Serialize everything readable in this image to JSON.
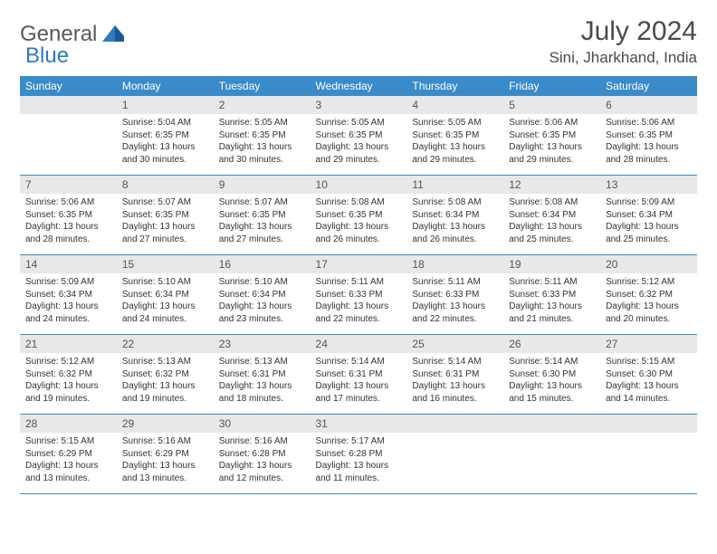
{
  "logo": {
    "text1": "General",
    "text2": "Blue"
  },
  "title": "July 2024",
  "location": "Sini, Jharkhand, India",
  "colors": {
    "header_bg": "#3a8bc9",
    "header_fg": "#ffffff",
    "daynum_bg": "#e8e8e8",
    "border": "#3a8bc9",
    "logo_gray": "#58595b",
    "logo_blue": "#2c7bbf"
  },
  "weekdays": [
    "Sunday",
    "Monday",
    "Tuesday",
    "Wednesday",
    "Thursday",
    "Friday",
    "Saturday"
  ],
  "weeks": [
    [
      {
        "n": "",
        "lines": []
      },
      {
        "n": "1",
        "lines": [
          "Sunrise: 5:04 AM",
          "Sunset: 6:35 PM",
          "Daylight: 13 hours and 30 minutes."
        ]
      },
      {
        "n": "2",
        "lines": [
          "Sunrise: 5:05 AM",
          "Sunset: 6:35 PM",
          "Daylight: 13 hours and 30 minutes."
        ]
      },
      {
        "n": "3",
        "lines": [
          "Sunrise: 5:05 AM",
          "Sunset: 6:35 PM",
          "Daylight: 13 hours and 29 minutes."
        ]
      },
      {
        "n": "4",
        "lines": [
          "Sunrise: 5:05 AM",
          "Sunset: 6:35 PM",
          "Daylight: 13 hours and 29 minutes."
        ]
      },
      {
        "n": "5",
        "lines": [
          "Sunrise: 5:06 AM",
          "Sunset: 6:35 PM",
          "Daylight: 13 hours and 29 minutes."
        ]
      },
      {
        "n": "6",
        "lines": [
          "Sunrise: 5:06 AM",
          "Sunset: 6:35 PM",
          "Daylight: 13 hours and 28 minutes."
        ]
      }
    ],
    [
      {
        "n": "7",
        "lines": [
          "Sunrise: 5:06 AM",
          "Sunset: 6:35 PM",
          "Daylight: 13 hours and 28 minutes."
        ]
      },
      {
        "n": "8",
        "lines": [
          "Sunrise: 5:07 AM",
          "Sunset: 6:35 PM",
          "Daylight: 13 hours and 27 minutes."
        ]
      },
      {
        "n": "9",
        "lines": [
          "Sunrise: 5:07 AM",
          "Sunset: 6:35 PM",
          "Daylight: 13 hours and 27 minutes."
        ]
      },
      {
        "n": "10",
        "lines": [
          "Sunrise: 5:08 AM",
          "Sunset: 6:35 PM",
          "Daylight: 13 hours and 26 minutes."
        ]
      },
      {
        "n": "11",
        "lines": [
          "Sunrise: 5:08 AM",
          "Sunset: 6:34 PM",
          "Daylight: 13 hours and 26 minutes."
        ]
      },
      {
        "n": "12",
        "lines": [
          "Sunrise: 5:08 AM",
          "Sunset: 6:34 PM",
          "Daylight: 13 hours and 25 minutes."
        ]
      },
      {
        "n": "13",
        "lines": [
          "Sunrise: 5:09 AM",
          "Sunset: 6:34 PM",
          "Daylight: 13 hours and 25 minutes."
        ]
      }
    ],
    [
      {
        "n": "14",
        "lines": [
          "Sunrise: 5:09 AM",
          "Sunset: 6:34 PM",
          "Daylight: 13 hours and 24 minutes."
        ]
      },
      {
        "n": "15",
        "lines": [
          "Sunrise: 5:10 AM",
          "Sunset: 6:34 PM",
          "Daylight: 13 hours and 24 minutes."
        ]
      },
      {
        "n": "16",
        "lines": [
          "Sunrise: 5:10 AM",
          "Sunset: 6:34 PM",
          "Daylight: 13 hours and 23 minutes."
        ]
      },
      {
        "n": "17",
        "lines": [
          "Sunrise: 5:11 AM",
          "Sunset: 6:33 PM",
          "Daylight: 13 hours and 22 minutes."
        ]
      },
      {
        "n": "18",
        "lines": [
          "Sunrise: 5:11 AM",
          "Sunset: 6:33 PM",
          "Daylight: 13 hours and 22 minutes."
        ]
      },
      {
        "n": "19",
        "lines": [
          "Sunrise: 5:11 AM",
          "Sunset: 6:33 PM",
          "Daylight: 13 hours and 21 minutes."
        ]
      },
      {
        "n": "20",
        "lines": [
          "Sunrise: 5:12 AM",
          "Sunset: 6:32 PM",
          "Daylight: 13 hours and 20 minutes."
        ]
      }
    ],
    [
      {
        "n": "21",
        "lines": [
          "Sunrise: 5:12 AM",
          "Sunset: 6:32 PM",
          "Daylight: 13 hours and 19 minutes."
        ]
      },
      {
        "n": "22",
        "lines": [
          "Sunrise: 5:13 AM",
          "Sunset: 6:32 PM",
          "Daylight: 13 hours and 19 minutes."
        ]
      },
      {
        "n": "23",
        "lines": [
          "Sunrise: 5:13 AM",
          "Sunset: 6:31 PM",
          "Daylight: 13 hours and 18 minutes."
        ]
      },
      {
        "n": "24",
        "lines": [
          "Sunrise: 5:14 AM",
          "Sunset: 6:31 PM",
          "Daylight: 13 hours and 17 minutes."
        ]
      },
      {
        "n": "25",
        "lines": [
          "Sunrise: 5:14 AM",
          "Sunset: 6:31 PM",
          "Daylight: 13 hours and 16 minutes."
        ]
      },
      {
        "n": "26",
        "lines": [
          "Sunrise: 5:14 AM",
          "Sunset: 6:30 PM",
          "Daylight: 13 hours and 15 minutes."
        ]
      },
      {
        "n": "27",
        "lines": [
          "Sunrise: 5:15 AM",
          "Sunset: 6:30 PM",
          "Daylight: 13 hours and 14 minutes."
        ]
      }
    ],
    [
      {
        "n": "28",
        "lines": [
          "Sunrise: 5:15 AM",
          "Sunset: 6:29 PM",
          "Daylight: 13 hours and 13 minutes."
        ]
      },
      {
        "n": "29",
        "lines": [
          "Sunrise: 5:16 AM",
          "Sunset: 6:29 PM",
          "Daylight: 13 hours and 13 minutes."
        ]
      },
      {
        "n": "30",
        "lines": [
          "Sunrise: 5:16 AM",
          "Sunset: 6:28 PM",
          "Daylight: 13 hours and 12 minutes."
        ]
      },
      {
        "n": "31",
        "lines": [
          "Sunrise: 5:17 AM",
          "Sunset: 6:28 PM",
          "Daylight: 13 hours and 11 minutes."
        ]
      },
      {
        "n": "",
        "lines": []
      },
      {
        "n": "",
        "lines": []
      },
      {
        "n": "",
        "lines": []
      }
    ]
  ]
}
